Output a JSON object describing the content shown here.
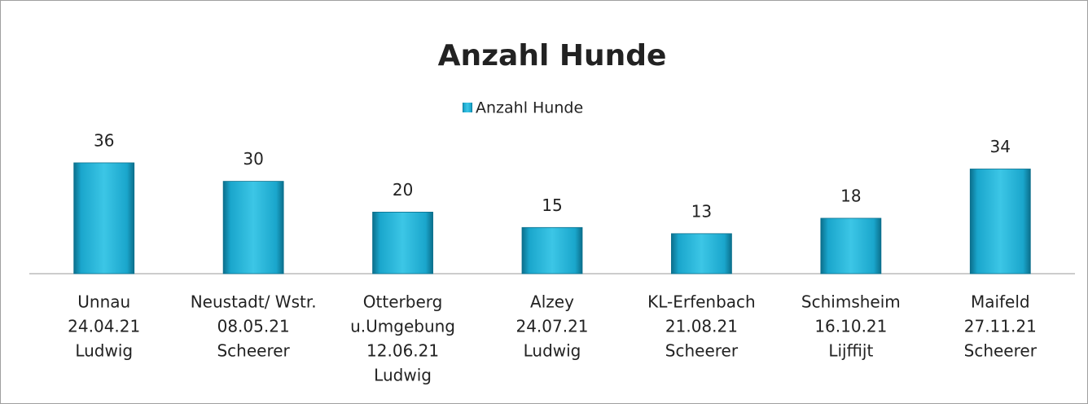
{
  "chart_data": {
    "type": "bar",
    "title": "Anzahl Hunde",
    "categories": [
      [
        "Unnau",
        "24.04.21",
        "Ludwig"
      ],
      [
        "Neustadt/ Wstr.",
        "08.05.21",
        "Scheerer"
      ],
      [
        "Otterberg",
        "u.Umgebung",
        "12.06.21",
        "Ludwig"
      ],
      [
        "Alzey",
        "24.07.21",
        "Ludwig"
      ],
      [
        "KL-Erfenbach",
        "21.08.21",
        "Scheerer"
      ],
      [
        "Schimsheim",
        "16.10.21",
        "Lijffijt"
      ],
      [
        "Maifeld",
        "27.11.21",
        "Scheerer"
      ]
    ],
    "series": [
      {
        "name": "Anzahl Hunde",
        "color": "#17a9cf",
        "values": [
          36,
          30,
          20,
          15,
          13,
          18,
          34
        ]
      }
    ],
    "legend": "top"
  }
}
